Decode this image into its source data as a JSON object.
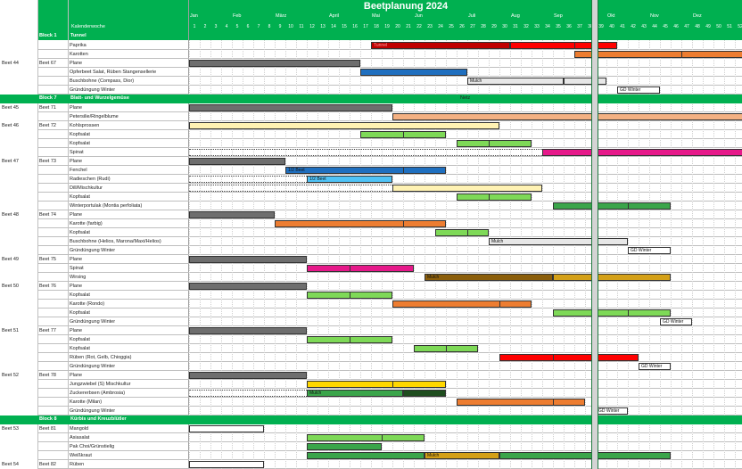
{
  "title": "Beetplanung 2024",
  "kalenderwoche_label": "Kalenderwoche",
  "months": [
    "Jan",
    "Feb",
    "März",
    "April",
    "Mai",
    "Jun",
    "Juli",
    "Aug",
    "Sep",
    "Okt",
    "Nov",
    "Dez"
  ],
  "weeks": [
    "1",
    "2",
    "3",
    "4",
    "5",
    "6",
    "7",
    "8",
    "9",
    "10",
    "11",
    "12",
    "13",
    "14",
    "15",
    "16",
    "17",
    "18",
    "19",
    "20",
    "21",
    "22",
    "23",
    "24",
    "25",
    "26",
    "27",
    "28",
    "29",
    "30",
    "31",
    "32",
    "33",
    "34",
    "35",
    "36",
    "37",
    "38",
    "39",
    "40",
    "41",
    "42",
    "43",
    "44",
    "45",
    "46",
    "47",
    "48",
    "49",
    "50",
    "51",
    "52"
  ],
  "colors": {
    "header_green": "#00b050",
    "plane_gray": "#6e6e6e",
    "dark_red": "#c00000",
    "red": "#ff0000",
    "orange": "#ed7d31",
    "light_orange": "#f4b183",
    "blue": "#1f6fbf",
    "light_blue": "#4fc3f7",
    "light_green": "#7ed957",
    "green": "#3aa54a",
    "dark_green": "#1e4d1e",
    "yellow": "#ffd700",
    "pale_yellow": "#fff2b3",
    "pink": "#e6198a",
    "brown": "#8b5e0a",
    "gold": "#d4a017",
    "light_gray": "#e7e7e7",
    "white": "#ffffff"
  },
  "blocks": [
    {
      "label": "Block 1",
      "name": "Tunnel"
    },
    {
      "label": "Block 7",
      "name": "Blatt- und Wurzelgemüse",
      "note": "Netz"
    },
    {
      "label": "Block 8",
      "name": "Kürbis und Kreuzblütler"
    }
  ],
  "rows": [
    {
      "beet": "",
      "nr": "",
      "crop": "Paprika"
    },
    {
      "beet": "",
      "nr": "",
      "crop": "Karotten"
    },
    {
      "beet": "Beet 44",
      "nr": "Beet 67",
      "crop": "Plane"
    },
    {
      "beet": "",
      "nr": "",
      "crop": "Opferbeet Salat, Rüben Stangensellerie"
    },
    {
      "beet": "",
      "nr": "",
      "crop": "Buschbohne (Compass, Dior)"
    },
    {
      "beet": "",
      "nr": "",
      "crop": "Gründüngung Winter"
    },
    {
      "beet": "Beet 45",
      "nr": "Beet 71",
      "crop": "Plane"
    },
    {
      "beet": "",
      "nr": "",
      "crop": "Petersilie/Ringelblume"
    },
    {
      "beet": "Beet 46",
      "nr": "Beet 72",
      "crop": "Kohlsprossen"
    },
    {
      "beet": "",
      "nr": "",
      "crop": "Kopfsalat"
    },
    {
      "beet": "",
      "nr": "",
      "crop": "Kopfsalat"
    },
    {
      "beet": "",
      "nr": "",
      "crop": "Spinat"
    },
    {
      "beet": "Beet 47",
      "nr": "Beet 73",
      "crop": "Plane"
    },
    {
      "beet": "",
      "nr": "",
      "crop": "Fenchel"
    },
    {
      "beet": "",
      "nr": "",
      "crop": "Radieschen (Rudi)"
    },
    {
      "beet": "",
      "nr": "",
      "crop": "Dill/Mischkultur"
    },
    {
      "beet": "",
      "nr": "",
      "crop": "Kopfsalat"
    },
    {
      "beet": "",
      "nr": "",
      "crop": "Winterportulak (Montia perfoliata)"
    },
    {
      "beet": "Beet 48",
      "nr": "Beet 74",
      "crop": "Plane"
    },
    {
      "beet": "",
      "nr": "",
      "crop": "Karotte (farbig)"
    },
    {
      "beet": "",
      "nr": "",
      "crop": "Kopfsalat"
    },
    {
      "beet": "",
      "nr": "",
      "crop": "Buschbohne (Helios, Marona/Maxi/Helios)"
    },
    {
      "beet": "",
      "nr": "",
      "crop": "Gründüngung Winter"
    },
    {
      "beet": "Beet 49",
      "nr": "Beet 75",
      "crop": "Plane"
    },
    {
      "beet": "",
      "nr": "",
      "crop": "Spinat"
    },
    {
      "beet": "",
      "nr": "",
      "crop": "Wirsing"
    },
    {
      "beet": "Beet 50",
      "nr": "Beet 76",
      "crop": "Plane"
    },
    {
      "beet": "",
      "nr": "",
      "crop": "Kopfsalat"
    },
    {
      "beet": "",
      "nr": "",
      "crop": "Karotte (Rondo)"
    },
    {
      "beet": "",
      "nr": "",
      "crop": "Kopfsalat"
    },
    {
      "beet": "",
      "nr": "",
      "crop": "Gründüngung Winter"
    },
    {
      "beet": "Beet 51",
      "nr": "Beet 77",
      "crop": "Plane"
    },
    {
      "beet": "",
      "nr": "",
      "crop": "Kopfsalat"
    },
    {
      "beet": "",
      "nr": "",
      "crop": "Kopfsalat"
    },
    {
      "beet": "",
      "nr": "",
      "crop": "Rüben (Rot, Gelb, Chioggia)"
    },
    {
      "beet": "",
      "nr": "",
      "crop": "Gründüngung Winter"
    },
    {
      "beet": "Beet 52",
      "nr": "Beet 78",
      "crop": "Plane"
    },
    {
      "beet": "",
      "nr": "",
      "crop": "Jungzwiebel (S) Mischkultur"
    },
    {
      "beet": "",
      "nr": "",
      "crop": "Zuckererbsen (Ambrosia)"
    },
    {
      "beet": "",
      "nr": "",
      "crop": "Karotte (Milan)"
    },
    {
      "beet": "",
      "nr": "",
      "crop": "Gründüngung Winter"
    },
    {
      "beet": "Beet 53",
      "nr": "Beet 81",
      "crop": "Mangold"
    },
    {
      "beet": "",
      "nr": "",
      "crop": "Asiasalat"
    },
    {
      "beet": "",
      "nr": "",
      "crop": "Pak Choi/Grünstielig"
    },
    {
      "beet": "",
      "nr": "",
      "crop": "Weißkraut"
    },
    {
      "beet": "Beet 54",
      "nr": "Beet 82",
      "crop": "Rüben"
    }
  ],
  "bars": [
    {
      "row": 0,
      "start": 18,
      "end": 31,
      "color": "dark_red",
      "segs": [],
      "label": "Tunnel"
    },
    {
      "row": 0,
      "start": 31,
      "end": 41,
      "color": "red",
      "segs": [
        37
      ],
      "label": ""
    },
    {
      "row": 1,
      "start": 37,
      "end": 53,
      "color": "orange",
      "segs": [
        47
      ],
      "label": ""
    },
    {
      "row": 2,
      "start": 1,
      "end": 17,
      "color": "plane_gray",
      "segs": [],
      "label": ""
    },
    {
      "row": 3,
      "start": 17,
      "end": 27,
      "color": "blue",
      "segs": [],
      "label": ""
    },
    {
      "row": 4,
      "start": 27,
      "end": 36,
      "color": "light_gray",
      "segs": [],
      "label": "Mulch"
    },
    {
      "row": 4,
      "start": 36,
      "end": 40,
      "color": "light_gray",
      "segs": [],
      "label": ""
    },
    {
      "row": 5,
      "start": 41,
      "end": 45,
      "color": "white",
      "segs": [],
      "label": "GD Winter"
    },
    {
      "row": 6,
      "start": 1,
      "end": 20,
      "color": "plane_gray",
      "segs": [],
      "label": ""
    },
    {
      "row": 7,
      "start": 20,
      "end": 53,
      "color": "light_orange",
      "segs": [],
      "label": ""
    },
    {
      "row": 8,
      "start": 1,
      "end": 30,
      "color": "pale_yellow",
      "segs": [],
      "label": ""
    },
    {
      "row": 9,
      "start": 17,
      "end": 25,
      "color": "light_green",
      "segs": [
        21
      ],
      "label": ""
    },
    {
      "row": 10,
      "start": 26,
      "end": 33,
      "color": "light_green",
      "segs": [
        29
      ],
      "label": ""
    },
    {
      "row": 11,
      "start": 34,
      "end": 53,
      "color": "pink",
      "segs": [],
      "label": ""
    },
    {
      "row": 12,
      "start": 1,
      "end": 10,
      "color": "plane_gray",
      "segs": [],
      "label": ""
    },
    {
      "row": 13,
      "start": 10,
      "end": 25,
      "color": "blue",
      "segs": [
        21
      ],
      "label": "1/2 Beet"
    },
    {
      "row": 14,
      "start": 12,
      "end": 20,
      "color": "light_blue",
      "segs": [],
      "label": "1/2 Beet"
    },
    {
      "row": 15,
      "start": 20,
      "end": 34,
      "color": "pale_yellow",
      "segs": [],
      "label": ""
    },
    {
      "row": 16,
      "start": 26,
      "end": 33,
      "color": "light_green",
      "segs": [
        29
      ],
      "label": ""
    },
    {
      "row": 17,
      "start": 35,
      "end": 46,
      "color": "green",
      "segs": [
        39,
        42
      ],
      "label": ""
    },
    {
      "row": 18,
      "start": 1,
      "end": 9,
      "color": "plane_gray",
      "segs": [],
      "label": ""
    },
    {
      "row": 19,
      "start": 9,
      "end": 25,
      "color": "orange",
      "segs": [
        21
      ],
      "label": ""
    },
    {
      "row": 20,
      "start": 24,
      "end": 29,
      "color": "light_green",
      "segs": [
        27
      ],
      "label": ""
    },
    {
      "row": 21,
      "start": 29,
      "end": 42,
      "color": "light_gray",
      "segs": [],
      "label": "Mulch"
    },
    {
      "row": 22,
      "start": 42,
      "end": 46,
      "color": "white",
      "segs": [],
      "label": "GD Winter"
    },
    {
      "row": 23,
      "start": 1,
      "end": 12,
      "color": "plane_gray",
      "segs": [],
      "label": ""
    },
    {
      "row": 24,
      "start": 12,
      "end": 22,
      "color": "pink",
      "segs": [
        16
      ],
      "label": ""
    },
    {
      "row": 25,
      "start": 23,
      "end": 35,
      "color": "brown",
      "segs": [],
      "label": "Mulch"
    },
    {
      "row": 25,
      "start": 35,
      "end": 46,
      "color": "gold",
      "segs": [],
      "label": ""
    },
    {
      "row": 26,
      "start": 1,
      "end": 12,
      "color": "plane_gray",
      "segs": [],
      "label": ""
    },
    {
      "row": 27,
      "start": 12,
      "end": 20,
      "color": "light_green",
      "segs": [
        16
      ],
      "label": ""
    },
    {
      "row": 28,
      "start": 20,
      "end": 33,
      "color": "orange",
      "segs": [
        30
      ],
      "label": ""
    },
    {
      "row": 29,
      "start": 35,
      "end": 46,
      "color": "light_green",
      "segs": [
        39,
        42
      ],
      "label": ""
    },
    {
      "row": 30,
      "start": 45,
      "end": 48,
      "color": "white",
      "segs": [],
      "label": "GD Winter"
    },
    {
      "row": 31,
      "start": 1,
      "end": 12,
      "color": "plane_gray",
      "segs": [],
      "label": ""
    },
    {
      "row": 32,
      "start": 12,
      "end": 20,
      "color": "light_green",
      "segs": [
        16
      ],
      "label": ""
    },
    {
      "row": 33,
      "start": 22,
      "end": 28,
      "color": "light_green",
      "segs": [
        25
      ],
      "label": ""
    },
    {
      "row": 34,
      "start": 30,
      "end": 43,
      "color": "red",
      "segs": [
        35,
        39
      ],
      "label": ""
    },
    {
      "row": 35,
      "start": 43,
      "end": 46,
      "color": "white",
      "segs": [],
      "label": "GD Winter"
    },
    {
      "row": 36,
      "start": 1,
      "end": 12,
      "color": "plane_gray",
      "segs": [],
      "label": ""
    },
    {
      "row": 37,
      "start": 12,
      "end": 25,
      "color": "yellow",
      "segs": [
        20
      ],
      "label": ""
    },
    {
      "row": 38,
      "start": 12,
      "end": 21,
      "color": "green",
      "segs": [],
      "label": "Mulch"
    },
    {
      "row": 38,
      "start": 21,
      "end": 25,
      "color": "dark_green",
      "segs": [],
      "label": ""
    },
    {
      "row": 39,
      "start": 26,
      "end": 38,
      "color": "orange",
      "segs": [
        35
      ],
      "label": ""
    },
    {
      "row": 40,
      "start": 39,
      "end": 42,
      "color": "white",
      "segs": [],
      "label": "GD Winter"
    },
    {
      "row": 41,
      "start": 1,
      "end": 8,
      "color": "white",
      "segs": [],
      "label": ""
    },
    {
      "row": 42,
      "start": 12,
      "end": 23,
      "color": "light_green",
      "segs": [
        19
      ],
      "label": ""
    },
    {
      "row": 43,
      "start": 12,
      "end": 19,
      "color": "green",
      "segs": [],
      "label": ""
    },
    {
      "row": 44,
      "start": 12,
      "end": 23,
      "color": "green",
      "segs": [],
      "label": ""
    },
    {
      "row": 44,
      "start": 23,
      "end": 30,
      "color": "gold",
      "segs": [],
      "label": "Mulch"
    },
    {
      "row": 44,
      "start": 30,
      "end": 46,
      "color": "green",
      "segs": [],
      "label": ""
    },
    {
      "row": 45,
      "start": 1,
      "end": 8,
      "color": "white",
      "segs": [],
      "label": ""
    }
  ],
  "dashed": [
    {
      "row": 11,
      "start": 1,
      "end": 34
    },
    {
      "row": 14,
      "start": 1,
      "end": 12
    },
    {
      "row": 15,
      "start": 1,
      "end": 20
    },
    {
      "row": 38,
      "start": 1,
      "end": 12
    }
  ],
  "today_week": 38.5
}
